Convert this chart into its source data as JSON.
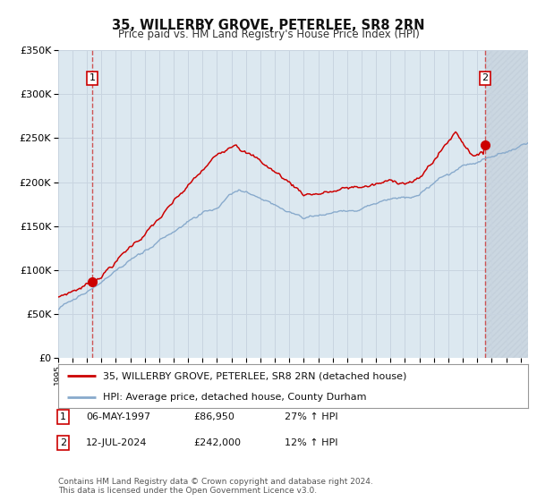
{
  "title": "35, WILLERBY GROVE, PETERLEE, SR8 2RN",
  "subtitle": "Price paid vs. HM Land Registry's House Price Index (HPI)",
  "legend_line1": "35, WILLERBY GROVE, PETERLEE, SR8 2RN (detached house)",
  "legend_line2": "HPI: Average price, detached house, County Durham",
  "footnote": "Contains HM Land Registry data © Crown copyright and database right 2024.\nThis data is licensed under the Open Government Licence v3.0.",
  "table_row1": [
    "1",
    "06-MAY-1997",
    "£86,950",
    "27% ↑ HPI"
  ],
  "table_row2": [
    "2",
    "12-JUL-2024",
    "£242,000",
    "12% ↑ HPI"
  ],
  "marker1_year": 1997.37,
  "marker1_value": 86950,
  "marker2_year": 2024.54,
  "marker2_value": 242000,
  "ylim": [
    0,
    350000
  ],
  "xlim_start": 1995.0,
  "xlim_end": 2027.5,
  "red_color": "#cc0000",
  "blue_color": "#88aacc",
  "dashed_color": "#cc4444",
  "grid_color": "#c8d4e0",
  "plot_bg": "#dce8f0",
  "hatch_color": "#c0ccd8"
}
